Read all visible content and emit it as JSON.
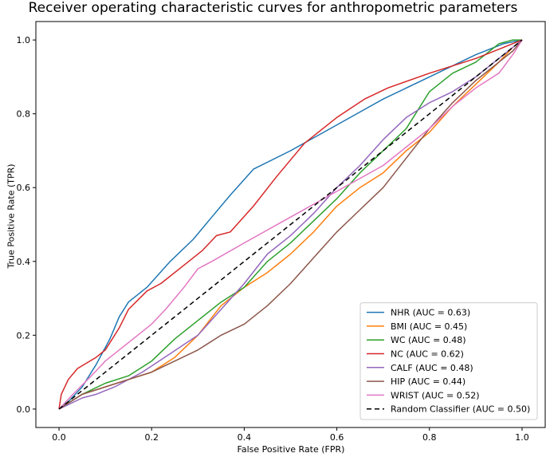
{
  "chart_data": {
    "type": "line",
    "title": "Receiver operating characteristic curves for anthropometric parameters",
    "xlabel": "False Positive Rate (FPR)",
    "ylabel": "True Positive Rate (TPR)",
    "xlim": [
      -0.05,
      1.05
    ],
    "ylim": [
      -0.05,
      1.05
    ],
    "x_ticks": [
      "0.0",
      "0.2",
      "0.4",
      "0.6",
      "0.8",
      "1.0"
    ],
    "y_ticks": [
      "0.0",
      "0.2",
      "0.4",
      "0.6",
      "0.8",
      "1.0"
    ],
    "grid": false,
    "legend_position": "lower-right",
    "series": [
      {
        "name": "NHR (AUC = 0.63)",
        "color": "#1f77b4",
        "dashed": false,
        "points": [
          [
            0,
            0
          ],
          [
            0.02,
            0.02
          ],
          [
            0.05,
            0.06
          ],
          [
            0.08,
            0.12
          ],
          [
            0.11,
            0.19
          ],
          [
            0.13,
            0.25
          ],
          [
            0.15,
            0.29
          ],
          [
            0.19,
            0.33
          ],
          [
            0.24,
            0.4
          ],
          [
            0.29,
            0.46
          ],
          [
            0.33,
            0.52
          ],
          [
            0.37,
            0.58
          ],
          [
            0.42,
            0.65
          ],
          [
            0.5,
            0.7
          ],
          [
            0.6,
            0.77
          ],
          [
            0.7,
            0.84
          ],
          [
            0.8,
            0.9
          ],
          [
            0.9,
            0.96
          ],
          [
            0.96,
            0.99
          ],
          [
            1.0,
            1.0
          ]
        ]
      },
      {
        "name": "BMI (AUC = 0.45)",
        "color": "#ff7f0e",
        "dashed": false,
        "points": [
          [
            0,
            0
          ],
          [
            0.05,
            0.04
          ],
          [
            0.1,
            0.06
          ],
          [
            0.15,
            0.08
          ],
          [
            0.2,
            0.1
          ],
          [
            0.25,
            0.14
          ],
          [
            0.3,
            0.2
          ],
          [
            0.35,
            0.28
          ],
          [
            0.4,
            0.33
          ],
          [
            0.45,
            0.37
          ],
          [
            0.5,
            0.42
          ],
          [
            0.55,
            0.48
          ],
          [
            0.6,
            0.55
          ],
          [
            0.65,
            0.6
          ],
          [
            0.7,
            0.64
          ],
          [
            0.75,
            0.7
          ],
          [
            0.8,
            0.75
          ],
          [
            0.85,
            0.82
          ],
          [
            0.9,
            0.88
          ],
          [
            0.95,
            0.94
          ],
          [
            0.98,
            0.98
          ],
          [
            1.0,
            1.0
          ]
        ]
      },
      {
        "name": "WC (AUC = 0.48)",
        "color": "#2ca02c",
        "dashed": false,
        "points": [
          [
            0,
            0
          ],
          [
            0.05,
            0.04
          ],
          [
            0.1,
            0.07
          ],
          [
            0.15,
            0.09
          ],
          [
            0.2,
            0.13
          ],
          [
            0.25,
            0.19
          ],
          [
            0.3,
            0.24
          ],
          [
            0.35,
            0.29
          ],
          [
            0.4,
            0.33
          ],
          [
            0.45,
            0.4
          ],
          [
            0.5,
            0.45
          ],
          [
            0.55,
            0.51
          ],
          [
            0.6,
            0.57
          ],
          [
            0.65,
            0.64
          ],
          [
            0.7,
            0.7
          ],
          [
            0.75,
            0.76
          ],
          [
            0.8,
            0.86
          ],
          [
            0.85,
            0.91
          ],
          [
            0.9,
            0.94
          ],
          [
            0.95,
            0.99
          ],
          [
            0.98,
            1.0
          ],
          [
            1.0,
            1.0
          ]
        ]
      },
      {
        "name": "NC (AUC = 0.62)",
        "color": "#d62728",
        "dashed": false,
        "points": [
          [
            0,
            0
          ],
          [
            0.005,
            0.04
          ],
          [
            0.02,
            0.08
          ],
          [
            0.04,
            0.11
          ],
          [
            0.08,
            0.14
          ],
          [
            0.1,
            0.16
          ],
          [
            0.13,
            0.22
          ],
          [
            0.15,
            0.27
          ],
          [
            0.19,
            0.32
          ],
          [
            0.22,
            0.34
          ],
          [
            0.27,
            0.39
          ],
          [
            0.31,
            0.43
          ],
          [
            0.34,
            0.47
          ],
          [
            0.37,
            0.48
          ],
          [
            0.42,
            0.55
          ],
          [
            0.47,
            0.63
          ],
          [
            0.53,
            0.72
          ],
          [
            0.6,
            0.79
          ],
          [
            0.66,
            0.84
          ],
          [
            0.71,
            0.87
          ],
          [
            0.8,
            0.91
          ],
          [
            0.9,
            0.95
          ],
          [
            0.96,
            0.98
          ],
          [
            1.0,
            1.0
          ]
        ]
      },
      {
        "name": "CALF (AUC = 0.48)",
        "color": "#9467bd",
        "dashed": false,
        "points": [
          [
            0,
            0
          ],
          [
            0.05,
            0.03
          ],
          [
            0.08,
            0.04
          ],
          [
            0.12,
            0.06
          ],
          [
            0.18,
            0.1
          ],
          [
            0.24,
            0.15
          ],
          [
            0.3,
            0.2
          ],
          [
            0.35,
            0.27
          ],
          [
            0.4,
            0.34
          ],
          [
            0.45,
            0.42
          ],
          [
            0.5,
            0.47
          ],
          [
            0.55,
            0.53
          ],
          [
            0.6,
            0.6
          ],
          [
            0.65,
            0.66
          ],
          [
            0.7,
            0.73
          ],
          [
            0.75,
            0.79
          ],
          [
            0.8,
            0.83
          ],
          [
            0.85,
            0.86
          ],
          [
            0.9,
            0.9
          ],
          [
            0.95,
            0.95
          ],
          [
            0.98,
            0.98
          ],
          [
            1.0,
            1.0
          ]
        ]
      },
      {
        "name": "HIP (AUC = 0.44)",
        "color": "#8c564b",
        "dashed": false,
        "points": [
          [
            0,
            0
          ],
          [
            0.05,
            0.04
          ],
          [
            0.1,
            0.06
          ],
          [
            0.15,
            0.08
          ],
          [
            0.2,
            0.1
          ],
          [
            0.25,
            0.13
          ],
          [
            0.3,
            0.16
          ],
          [
            0.35,
            0.2
          ],
          [
            0.4,
            0.23
          ],
          [
            0.45,
            0.28
          ],
          [
            0.5,
            0.34
          ],
          [
            0.55,
            0.41
          ],
          [
            0.6,
            0.48
          ],
          [
            0.65,
            0.54
          ],
          [
            0.7,
            0.6
          ],
          [
            0.75,
            0.68
          ],
          [
            0.8,
            0.76
          ],
          [
            0.85,
            0.83
          ],
          [
            0.9,
            0.89
          ],
          [
            0.95,
            0.94
          ],
          [
            0.98,
            0.97
          ],
          [
            1.0,
            1.0
          ]
        ]
      },
      {
        "name": "WRIST (AUC = 0.52)",
        "color": "#e377c2",
        "dashed": false,
        "points": [
          [
            0,
            0
          ],
          [
            0.03,
            0.04
          ],
          [
            0.07,
            0.09
          ],
          [
            0.1,
            0.13
          ],
          [
            0.15,
            0.18
          ],
          [
            0.2,
            0.23
          ],
          [
            0.23,
            0.27
          ],
          [
            0.27,
            0.33
          ],
          [
            0.3,
            0.38
          ],
          [
            0.33,
            0.4
          ],
          [
            0.4,
            0.45
          ],
          [
            0.5,
            0.52
          ],
          [
            0.6,
            0.59
          ],
          [
            0.7,
            0.66
          ],
          [
            0.8,
            0.76
          ],
          [
            0.85,
            0.82
          ],
          [
            0.9,
            0.87
          ],
          [
            0.95,
            0.91
          ],
          [
            0.98,
            0.96
          ],
          [
            1.0,
            1.0
          ]
        ]
      },
      {
        "name": "Random Classifier (AUC = 0.50)",
        "color": "#000000",
        "dashed": true,
        "points": [
          [
            0,
            0
          ],
          [
            1,
            1
          ]
        ]
      }
    ]
  }
}
